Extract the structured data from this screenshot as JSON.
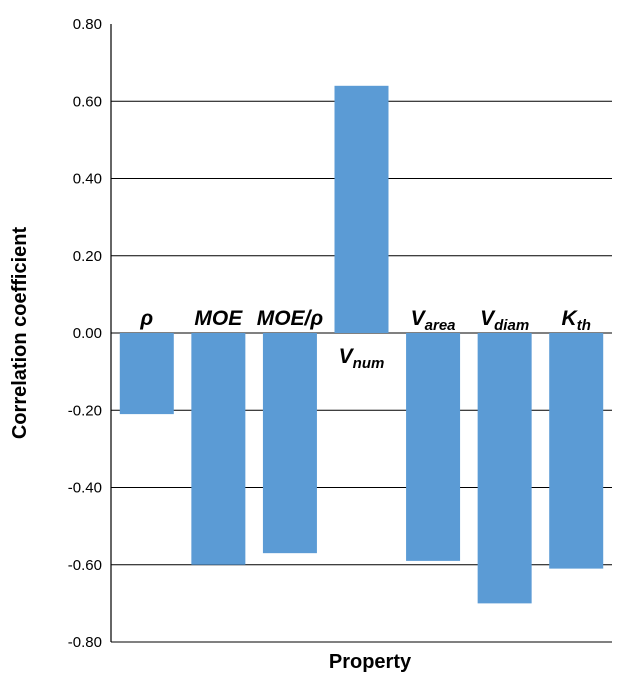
{
  "chart_data": {
    "type": "bar",
    "title": "",
    "xlabel": "Property",
    "ylabel": "Correlation coefficient",
    "ylim": [
      -0.8,
      0.8
    ],
    "yticks": [
      "0.80",
      "0.60",
      "0.40",
      "0.20",
      "0.00",
      "-0.20",
      "-0.40",
      "-0.60",
      "-0.80"
    ],
    "grid": true,
    "bar_color": "#5b9bd5",
    "categories": [
      {
        "main": "ρ",
        "sub": ""
      },
      {
        "main": "MOE",
        "sub": ""
      },
      {
        "main": "MOE/ρ",
        "sub": ""
      },
      {
        "main": "V",
        "sub": "num"
      },
      {
        "main": "V",
        "sub": "area"
      },
      {
        "main": "V",
        "sub": "diam"
      },
      {
        "main": "K",
        "sub": "th"
      }
    ],
    "values": [
      -0.21,
      -0.6,
      -0.57,
      0.64,
      -0.59,
      -0.7,
      -0.61
    ]
  }
}
